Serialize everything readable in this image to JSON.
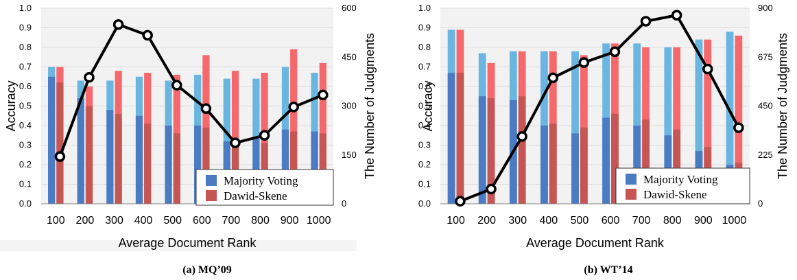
{
  "chart_data": [
    {
      "type": "bar",
      "caption": "(a) MQ’09",
      "categories": [
        "100",
        "200",
        "300",
        "400",
        "500",
        "600",
        "700",
        "800",
        "900",
        "1000"
      ],
      "xlabel": "Average Document Rank",
      "ylabel": "Accuracy",
      "y2label": "The Number of Judgments",
      "ylim": [
        0,
        1.0
      ],
      "yticks": [
        "0.0",
        "0.1",
        "0.2",
        "0.3",
        "0.4",
        "0.5",
        "0.6",
        "0.7",
        "0.8",
        "0.9",
        "1.0"
      ],
      "y2lim": [
        0,
        600
      ],
      "y2ticks": [
        "0",
        "150",
        "300",
        "450",
        "600"
      ],
      "series": [
        {
          "name": "Majority Voting",
          "values": [
            0.7,
            0.63,
            0.63,
            0.65,
            0.63,
            0.66,
            0.64,
            0.64,
            0.7,
            0.67
          ],
          "inner": [
            0.65,
            0.54,
            0.48,
            0.45,
            0.4,
            0.4,
            0.32,
            0.34,
            0.38,
            0.37
          ]
        },
        {
          "name": "Dawid-Skene",
          "values": [
            0.7,
            0.6,
            0.68,
            0.67,
            0.66,
            0.76,
            0.68,
            0.67,
            0.79,
            0.72
          ],
          "inner": [
            0.62,
            0.5,
            0.46,
            0.41,
            0.36,
            0.39,
            0.29,
            0.31,
            0.37,
            0.36
          ]
        }
      ],
      "line": [
        145,
        388,
        550,
        517,
        364,
        292,
        187,
        210,
        297,
        334
      ]
    },
    {
      "type": "bar",
      "caption": "(b) WT’14",
      "categories": [
        "100",
        "200",
        "300",
        "400",
        "500",
        "600",
        "700",
        "800",
        "900",
        "1000"
      ],
      "xlabel": "Average Document Rank",
      "ylabel": "Accuracy",
      "y2label": "The Number of Judgments",
      "ylim": [
        0,
        1.0
      ],
      "yticks": [
        "0.0",
        "0.1",
        "0.2",
        "0.3",
        "0.4",
        "0.5",
        "0.6",
        "0.7",
        "0.8",
        "0.9",
        "1.0"
      ],
      "y2lim": [
        0,
        900
      ],
      "y2ticks": [
        "0",
        "225",
        "450",
        "675",
        "900"
      ],
      "series": [
        {
          "name": "Majority Voting",
          "values": [
            0.89,
            0.77,
            0.78,
            0.78,
            0.78,
            0.82,
            0.82,
            0.8,
            0.84,
            0.88
          ],
          "inner": [
            0.67,
            0.55,
            0.53,
            0.4,
            0.36,
            0.44,
            0.4,
            0.35,
            0.27,
            0.2
          ]
        },
        {
          "name": "Dawid-Skene",
          "values": [
            0.89,
            0.72,
            0.78,
            0.78,
            0.76,
            0.82,
            0.8,
            0.8,
            0.84,
            0.86
          ],
          "inner": [
            0.67,
            0.54,
            0.55,
            0.41,
            0.39,
            0.46,
            0.43,
            0.38,
            0.29,
            0.21
          ]
        }
      ],
      "line": [
        12,
        68,
        310,
        580,
        650,
        700,
        840,
        868,
        620,
        350
      ]
    }
  ],
  "colors": {
    "mv_top": "#6AB6E0",
    "mv_bottom": "#4A7BC3",
    "ds_top": "#F5686B",
    "ds_bottom": "#C55654",
    "line": "#000000",
    "grid": "#DDDDDD",
    "plot_bg": "#F2F2F2"
  }
}
